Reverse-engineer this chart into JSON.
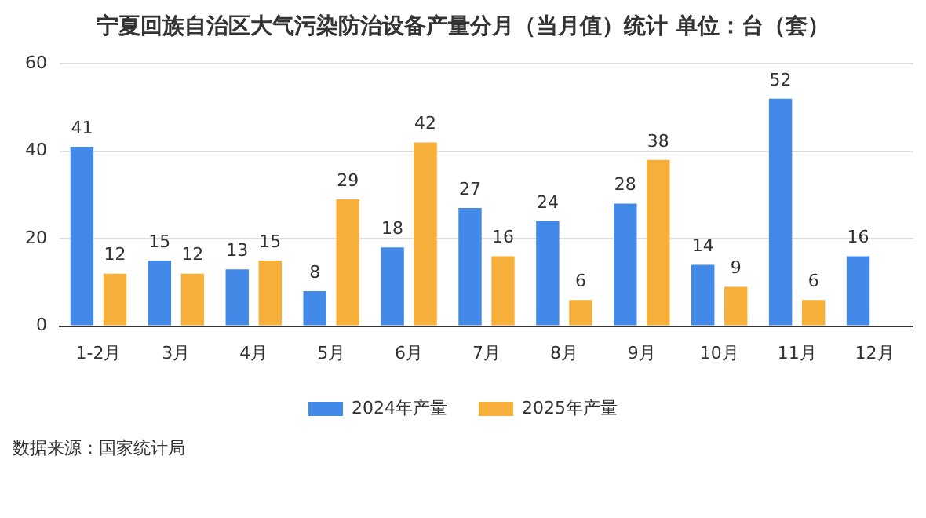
{
  "chart_data": {
    "type": "bar",
    "title": "宁夏回族自治区大气污染防治设备产量分月（当月值）统计 单位：台（套）",
    "categories": [
      "1-2月",
      "3月",
      "4月",
      "5月",
      "6月",
      "7月",
      "8月",
      "9月",
      "10月",
      "11月",
      "12月"
    ],
    "series": [
      {
        "name": "2024年产量",
        "color": "#4389e8",
        "values": [
          41,
          15,
          13,
          8,
          18,
          27,
          24,
          28,
          14,
          52,
          16
        ]
      },
      {
        "name": "2025年产量",
        "color": "#f6b03a",
        "values": [
          12,
          12,
          15,
          29,
          42,
          16,
          6,
          38,
          9,
          6,
          null
        ]
      }
    ],
    "ylim": [
      0,
      60
    ],
    "yticks": [
      0,
      20,
      40,
      60
    ],
    "grid": "y",
    "legend": "bottom",
    "data_labels": true,
    "annotations": [
      "数据来源：国家统计局"
    ]
  }
}
